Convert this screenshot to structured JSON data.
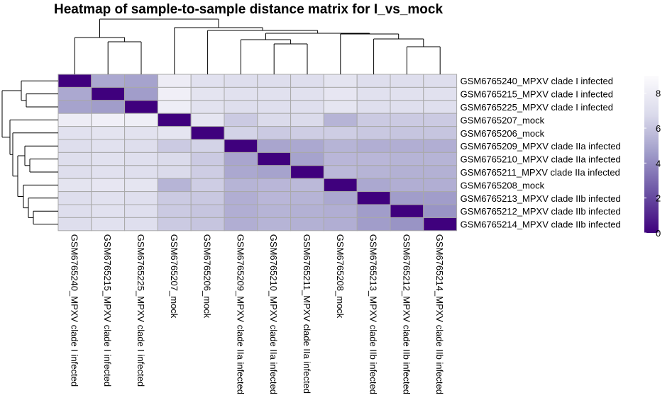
{
  "chart_data": {
    "type": "heatmap",
    "title": "Heatmap of sample-to-sample distance matrix for I_vs_mock",
    "rows": [
      "GSM6765240_MPXV clade I infected",
      "GSM6765215_MPXV clade I infected",
      "GSM6765225_MPXV clade I infected",
      "GSM6765207_mock",
      "GSM6765206_mock",
      "GSM6765209_MPXV clade IIa infected",
      "GSM6765210_MPXV clade IIa infected",
      "GSM6765211_MPXV clade IIa infected",
      "GSM6765208_mock",
      "GSM6765213_MPXV clade IIb infected",
      "GSM6765212_MPXV clade IIb infected",
      "GSM6765214_MPXV clade IIb infected"
    ],
    "columns": [
      "GSM6765240_MPXV clade I infected",
      "GSM6765215_MPXV clade I infected",
      "GSM6765225_MPXV clade I infected",
      "GSM6765207_mock",
      "GSM6765206_mock",
      "GSM6765209_MPXV clade IIa infected",
      "GSM6765210_MPXV clade IIa infected",
      "GSM6765211_MPXV clade IIa infected",
      "GSM6765208_mock",
      "GSM6765213_MPXV clade IIb infected",
      "GSM6765212_MPXV clade IIb infected",
      "GSM6765214_MPXV clade IIb infected"
    ],
    "values": [
      [
        0,
        5.0,
        4.8,
        8.0,
        7.2,
        7.0,
        7.0,
        7.0,
        7.4,
        7.0,
        7.0,
        7.0
      ],
      [
        5.0,
        0,
        4.6,
        8.2,
        7.4,
        7.2,
        7.2,
        7.2,
        7.6,
        7.2,
        7.2,
        7.2
      ],
      [
        4.8,
        4.6,
        0,
        8.1,
        7.3,
        7.0,
        7.1,
        7.1,
        7.5,
        7.1,
        7.1,
        7.1
      ],
      [
        8.0,
        8.2,
        8.1,
        0,
        7.5,
        6.2,
        6.8,
        6.8,
        5.4,
        6.2,
        6.2,
        6.2
      ],
      [
        7.2,
        7.4,
        7.3,
        7.5,
        0,
        6.5,
        6.2,
        6.3,
        6.3,
        6.1,
        6.0,
        6.0
      ],
      [
        7.0,
        7.2,
        7.0,
        6.2,
        6.5,
        0,
        4.9,
        5.0,
        5.4,
        5.2,
        5.2,
        5.2
      ],
      [
        7.0,
        7.2,
        7.1,
        6.8,
        6.2,
        4.9,
        0,
        4.8,
        5.5,
        5.5,
        5.4,
        5.4
      ],
      [
        7.0,
        7.2,
        7.1,
        6.8,
        6.3,
        5.0,
        4.8,
        0,
        5.6,
        5.4,
        5.3,
        5.3
      ],
      [
        7.4,
        7.6,
        7.5,
        5.4,
        6.3,
        5.4,
        5.5,
        5.6,
        0,
        5.0,
        5.2,
        5.2
      ],
      [
        7.0,
        7.2,
        7.1,
        6.2,
        6.1,
        5.2,
        5.5,
        5.4,
        5.0,
        0,
        4.6,
        4.6
      ],
      [
        7.0,
        7.2,
        7.1,
        6.2,
        6.0,
        5.2,
        5.4,
        5.3,
        5.2,
        4.6,
        0,
        4.3
      ],
      [
        7.0,
        7.2,
        7.1,
        6.2,
        6.0,
        5.2,
        5.4,
        5.3,
        5.2,
        4.6,
        4.3,
        0
      ]
    ],
    "colorscale": {
      "low": "#3f007d",
      "mid": "#9e9ac8",
      "high": "#fcfbfd",
      "range": [
        0,
        9
      ]
    },
    "legend": {
      "ticks": [
        0,
        2,
        4,
        6,
        8
      ],
      "placement": "right"
    },
    "dendrogram": "rows-left and columns-top"
  }
}
